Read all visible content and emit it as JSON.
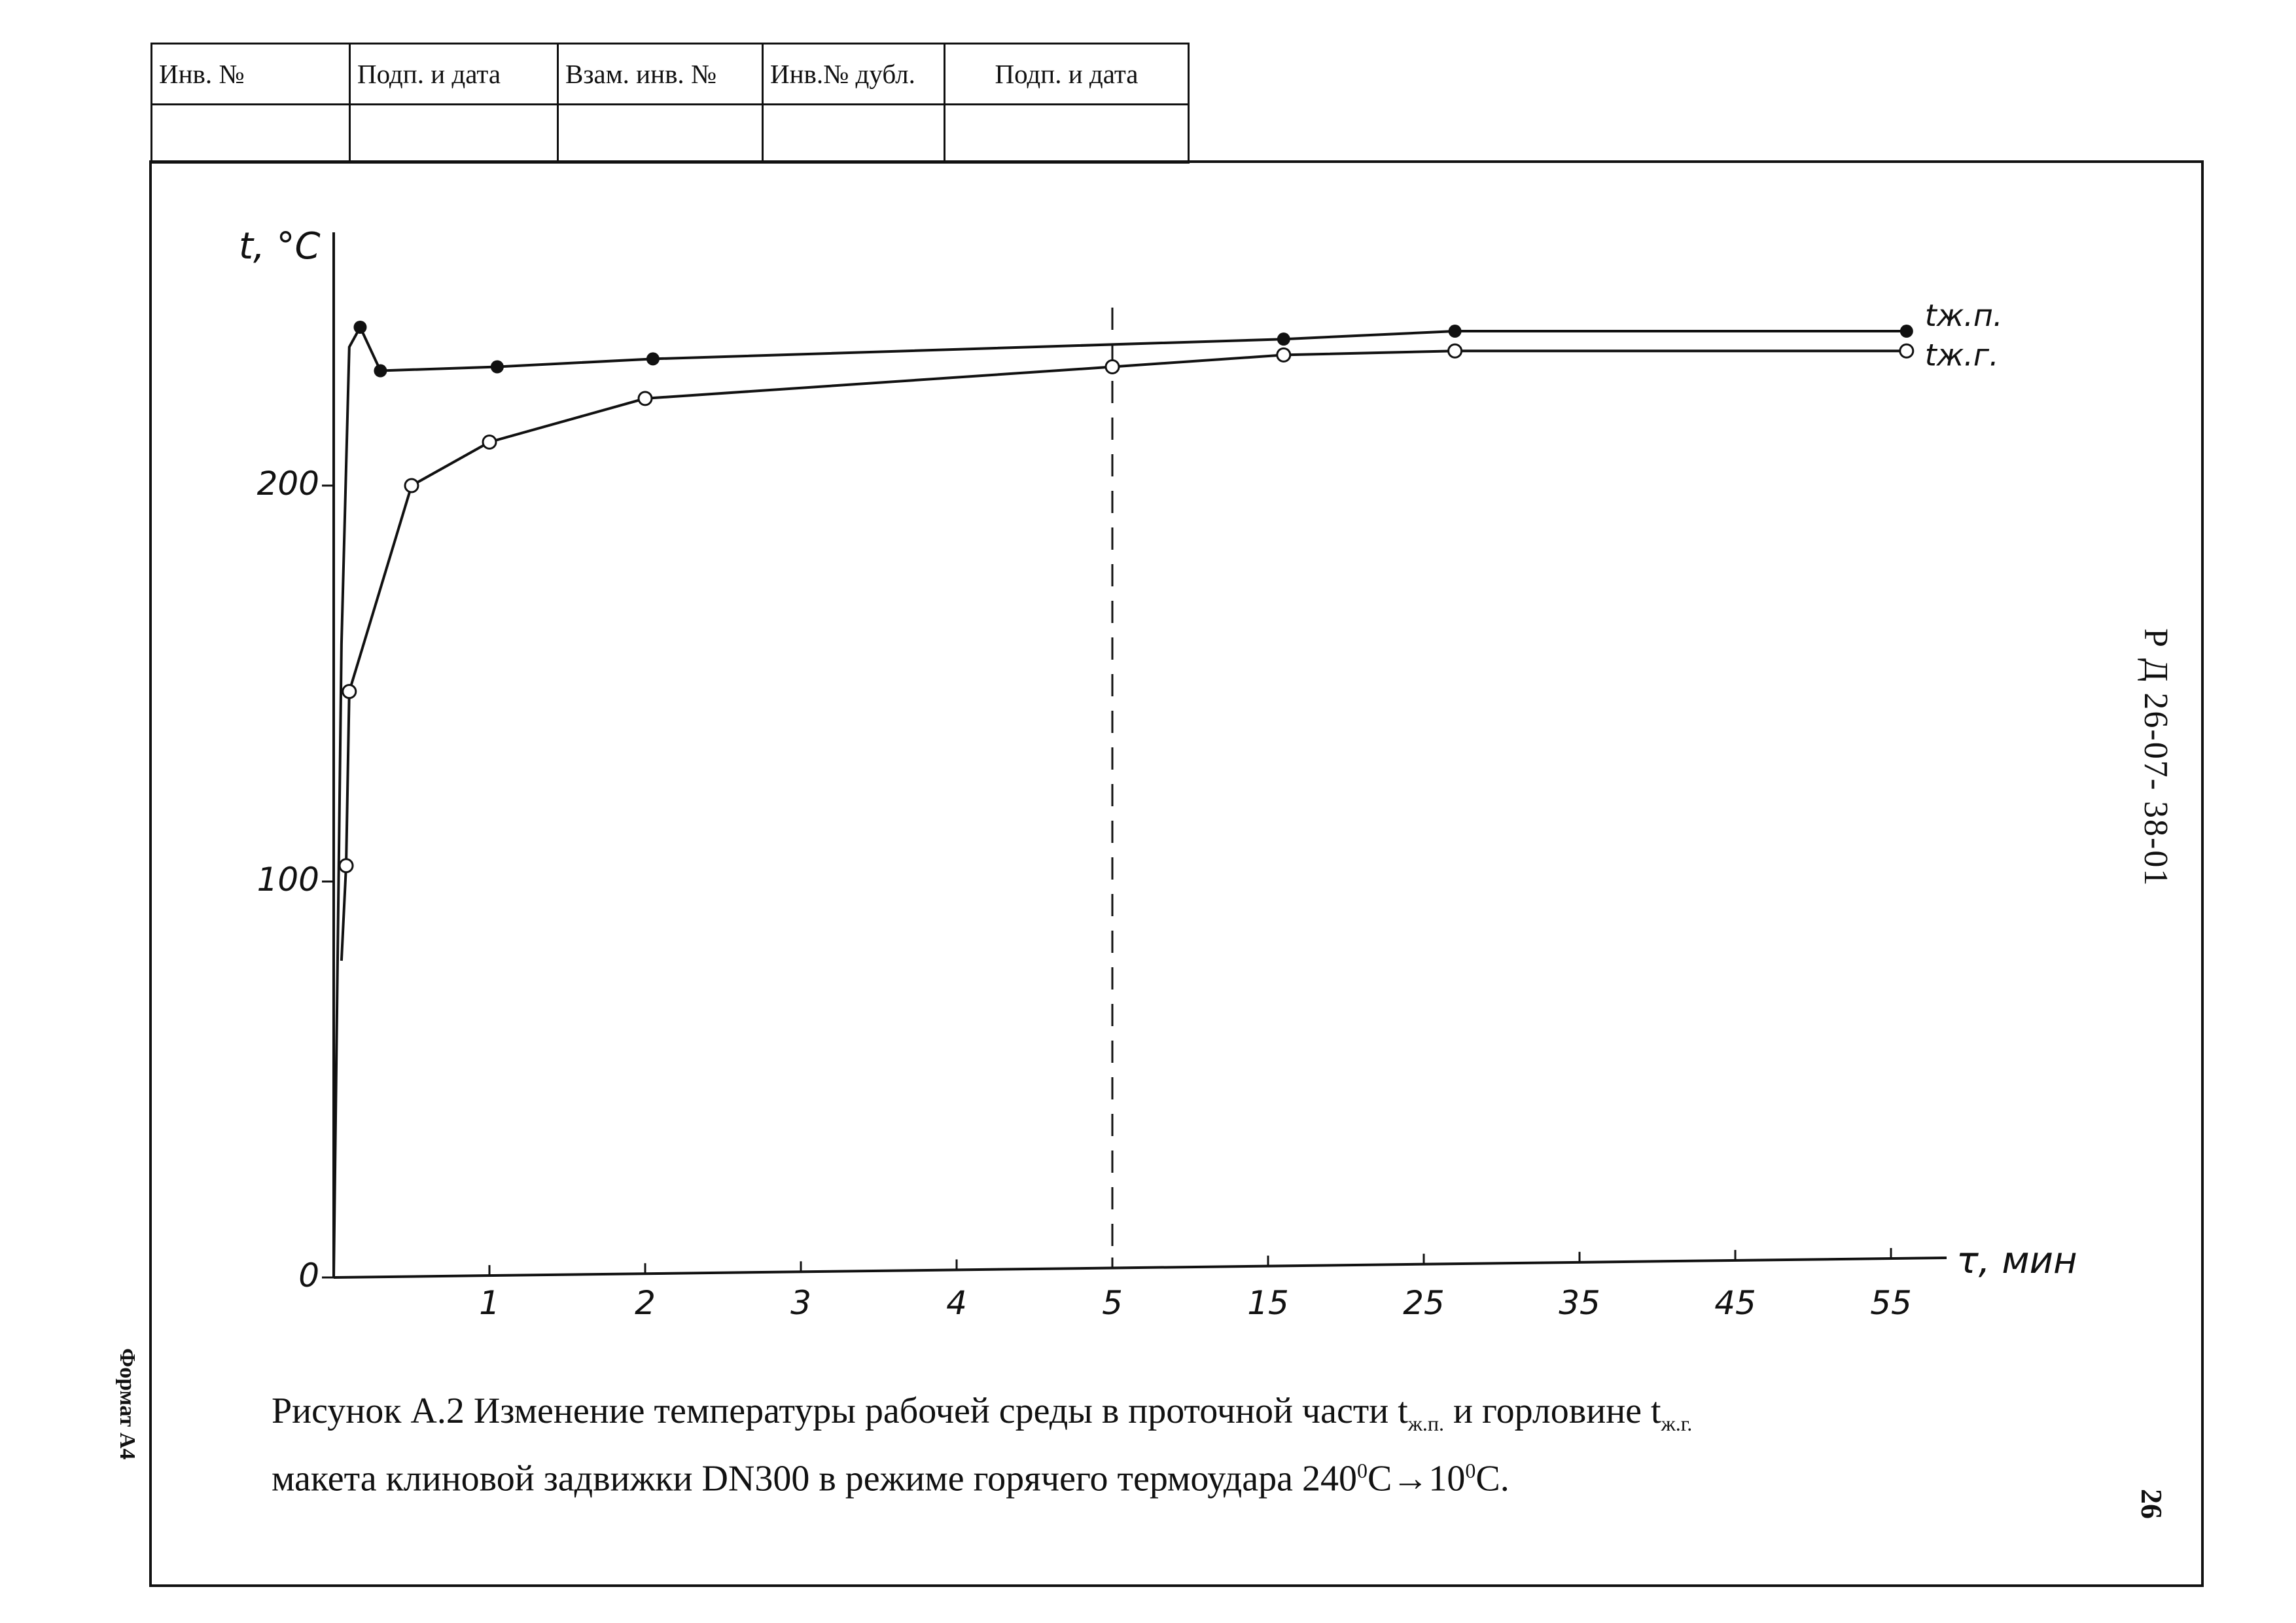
{
  "stamp": {
    "headers": [
      "Инв. №",
      "Подп. и дата",
      "Взам. инв. №",
      "Инв.№ дубл.",
      "Подп. и дата"
    ]
  },
  "document": {
    "code": "Р Д 26-07- 38-01",
    "page": "26",
    "format": "Формат А4"
  },
  "caption": {
    "prefix": "Рисунок А.2  Изменение температуры рабочей среды в проточной части t",
    "sub1": "ж.п.",
    "mid": "  и горловине t",
    "sub2": "ж.г.",
    "line2a": "макета клиновой задвижки DN300 в режиме горячего термоудара 240",
    "sup1": "0",
    "line2b": "С→10",
    "sup2": "0",
    "line2c": "С."
  },
  "chart_data": {
    "type": "line",
    "ylabel": "t, °C",
    "xlabel": "τ, мин",
    "y_ticks": [
      "0",
      "100",
      "200"
    ],
    "ylim": [
      0,
      262
    ],
    "x_ticks": [
      "1",
      "2",
      "3",
      "4",
      "5",
      "15",
      "25",
      "35",
      "45",
      "55"
    ],
    "x_scale": "piecewise: linear 0–5 min, then 5–55 min compressed (each 10 min equals 1 min of the first segment)",
    "vertical_marker_x": 5,
    "series": [
      {
        "name": "tж.п.",
        "marker": "filled-circle",
        "x": [
          0,
          0.05,
          0.1,
          0.17,
          0.3,
          1.05,
          2.05,
          16,
          27,
          56
        ],
        "y": [
          0,
          160,
          235,
          240,
          229,
          230,
          232,
          237,
          239,
          239
        ],
        "markers_at": [
          0.17,
          0.3,
          1.05,
          2.05,
          16,
          27,
          56
        ]
      },
      {
        "name": "tж.г.",
        "marker": "open-circle",
        "x": [
          0.05,
          0.08,
          0.1,
          0.5,
          1.0,
          2.0,
          5.0,
          16,
          27,
          56
        ],
        "y": [
          80,
          104,
          148,
          200,
          211,
          222,
          230,
          233,
          234,
          234
        ],
        "markers_at": [
          0.08,
          0.1,
          0.5,
          1.0,
          2.0,
          5.0,
          16,
          27,
          56
        ]
      }
    ]
  }
}
